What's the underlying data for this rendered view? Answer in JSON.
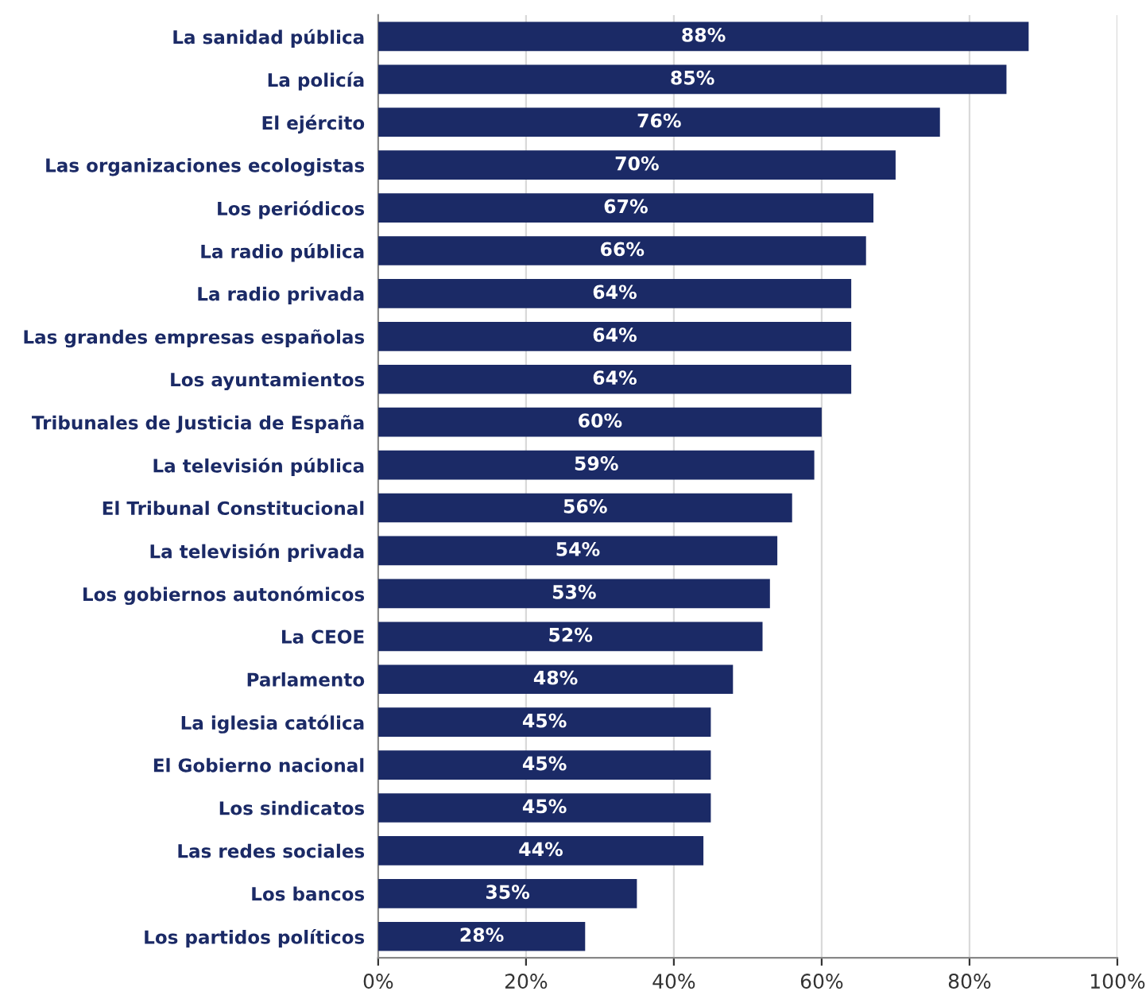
{
  "chart_data": {
    "type": "bar",
    "orientation": "horizontal",
    "categories": [
      "La sanidad pública",
      "La policía",
      "El ejército",
      "Las organizaciones ecologistas",
      "Los periódicos",
      "La radio pública",
      "La radio privada",
      "Las grandes empresas españolas",
      "Los ayuntamientos",
      "Tribunales de Justicia de España",
      "La televisión pública",
      "El Tribunal Constitucional",
      "La televisión privada",
      "Los gobiernos autonómicos",
      "La CEOE",
      "Parlamento",
      "La iglesia católica",
      "El Gobierno nacional",
      "Los sindicatos",
      "Las redes sociales",
      "Los bancos",
      "Los partidos políticos"
    ],
    "values": [
      88,
      85,
      76,
      70,
      67,
      66,
      64,
      64,
      64,
      60,
      59,
      56,
      54,
      53,
      52,
      48,
      45,
      45,
      45,
      44,
      35,
      28
    ],
    "value_labels": [
      "88%",
      "85%",
      "76%",
      "70%",
      "67%",
      "66%",
      "64%",
      "64%",
      "64%",
      "60%",
      "59%",
      "56%",
      "54%",
      "53%",
      "52%",
      "48%",
      "45%",
      "45%",
      "45%",
      "44%",
      "35%",
      "28%"
    ],
    "color": "#1b2a66",
    "xlim": [
      0,
      100
    ],
    "xticks": [
      {
        "value": 0,
        "label": "0%"
      },
      {
        "value": 20,
        "label": "20%"
      },
      {
        "value": 40,
        "label": "40%"
      },
      {
        "value": 60,
        "label": "60%"
      },
      {
        "value": 80,
        "label": "80%"
      },
      {
        "value": 100,
        "label": "100%"
      }
    ],
    "grid": "x"
  }
}
